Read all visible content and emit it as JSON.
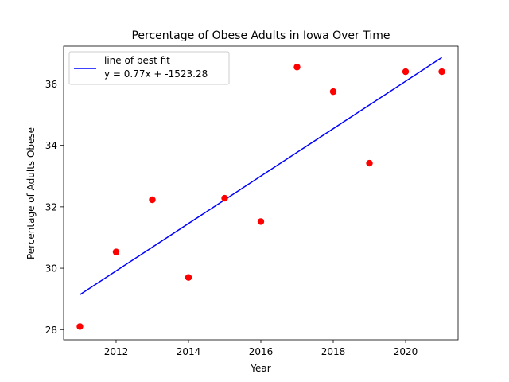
{
  "chart_data": {
    "type": "scatter",
    "title": "Percentage of Obese Adults in Iowa Over Time",
    "xlabel": "Year",
    "ylabel": "Percentage of Adults Obese",
    "xlim": [
      2010.55,
      2021.45
    ],
    "ylim": [
      27.67,
      37.23
    ],
    "xticks": [
      2012,
      2014,
      2016,
      2018,
      2020
    ],
    "yticks": [
      28,
      30,
      32,
      34,
      36
    ],
    "grid": false,
    "legend_position": "upper-left",
    "series": [
      {
        "kind": "points",
        "color": "#ff0000",
        "x": [
          2011,
          2012,
          2013,
          2014,
          2015,
          2016,
          2017,
          2018,
          2019,
          2020,
          2021
        ],
        "y": [
          28.1,
          30.53,
          32.23,
          29.7,
          32.28,
          31.52,
          36.55,
          35.75,
          33.42,
          36.4,
          36.4
        ]
      },
      {
        "kind": "fit-line",
        "name": "line of best fit",
        "equation": "y = 0.77x + -1523.28",
        "color": "#0000ff",
        "x": [
          2011,
          2021
        ],
        "y": [
          29.14,
          36.86
        ]
      }
    ]
  }
}
